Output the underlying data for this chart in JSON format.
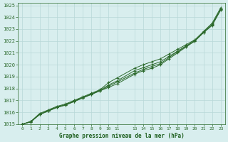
{
  "title": "",
  "xlabel": "Graphe pression niveau de la mer (hPa)",
  "ylabel": "",
  "bg_color": "#d8eeee",
  "plot_bg_color": "#d8eeee",
  "grid_color": "#b8d8d8",
  "line_color": "#2d6a2d",
  "marker_color": "#2d6a2d",
  "text_color": "#2d6a2d",
  "xlabel_color": "#1a5c1a",
  "tick_label_color": "#2d6a2d",
  "xlim": [
    -0.5,
    23.5
  ],
  "ylim": [
    1015,
    1025.2
  ],
  "yticks": [
    1015,
    1016,
    1017,
    1018,
    1019,
    1020,
    1021,
    1022,
    1023,
    1024,
    1025
  ],
  "xticks": [
    0,
    1,
    2,
    3,
    4,
    5,
    6,
    7,
    8,
    9,
    10,
    11,
    13,
    14,
    15,
    16,
    17,
    18,
    19,
    20,
    21,
    22,
    23
  ],
  "xtick_labels": [
    "0",
    "1",
    "2",
    "3",
    "4",
    "5",
    "6",
    "7",
    "8",
    "9",
    "10",
    "11",
    "13",
    "14",
    "15",
    "16",
    "17",
    "18",
    "19",
    "20",
    "21",
    "22",
    "23"
  ],
  "series": [
    {
      "x": [
        0,
        1,
        2,
        3,
        4,
        5,
        6,
        7,
        8,
        9,
        10,
        11,
        13,
        14,
        15,
        16,
        17,
        18,
        19,
        20,
        21,
        22,
        23
      ],
      "y": [
        1015.0,
        1015.2,
        1015.8,
        1016.1,
        1016.4,
        1016.6,
        1016.9,
        1017.2,
        1017.5,
        1017.8,
        1018.1,
        1018.4,
        1019.2,
        1019.5,
        1019.7,
        1020.0,
        1020.5,
        1021.0,
        1021.5,
        1022.0,
        1022.7,
        1023.3,
        1024.6
      ]
    },
    {
      "x": [
        0,
        1,
        2,
        3,
        4,
        5,
        6,
        7,
        8,
        9,
        10,
        11,
        13,
        14,
        15,
        16,
        17,
        18,
        19,
        20,
        21,
        22,
        23
      ],
      "y": [
        1015.0,
        1015.25,
        1015.9,
        1016.2,
        1016.5,
        1016.7,
        1017.0,
        1017.3,
        1017.6,
        1017.9,
        1018.5,
        1018.9,
        1019.7,
        1020.0,
        1020.25,
        1020.5,
        1020.9,
        1021.3,
        1021.7,
        1022.1,
        1022.8,
        1023.5,
        1024.8
      ]
    },
    {
      "x": [
        0,
        1,
        2,
        3,
        4,
        5,
        6,
        7,
        8,
        9,
        10,
        11,
        13,
        14,
        15,
        16,
        17,
        18,
        19,
        20,
        21,
        22,
        23
      ],
      "y": [
        1015.0,
        1015.2,
        1015.85,
        1016.15,
        1016.45,
        1016.65,
        1016.95,
        1017.25,
        1017.55,
        1017.85,
        1018.3,
        1018.65,
        1019.5,
        1019.75,
        1020.0,
        1020.25,
        1020.7,
        1021.15,
        1021.6,
        1022.05,
        1022.75,
        1023.4,
        1024.7
      ]
    },
    {
      "x": [
        0,
        1,
        2,
        3,
        4,
        5,
        6,
        7,
        8,
        9,
        10,
        11,
        13,
        14,
        15,
        16,
        17,
        18,
        19,
        20,
        21,
        22,
        23
      ],
      "y": [
        1015.0,
        1015.22,
        1015.82,
        1016.12,
        1016.42,
        1016.62,
        1016.92,
        1017.22,
        1017.52,
        1017.82,
        1018.2,
        1018.55,
        1019.3,
        1019.6,
        1019.85,
        1020.1,
        1020.6,
        1021.1,
        1021.55,
        1022.0,
        1022.7,
        1023.38,
        1024.65
      ]
    }
  ]
}
